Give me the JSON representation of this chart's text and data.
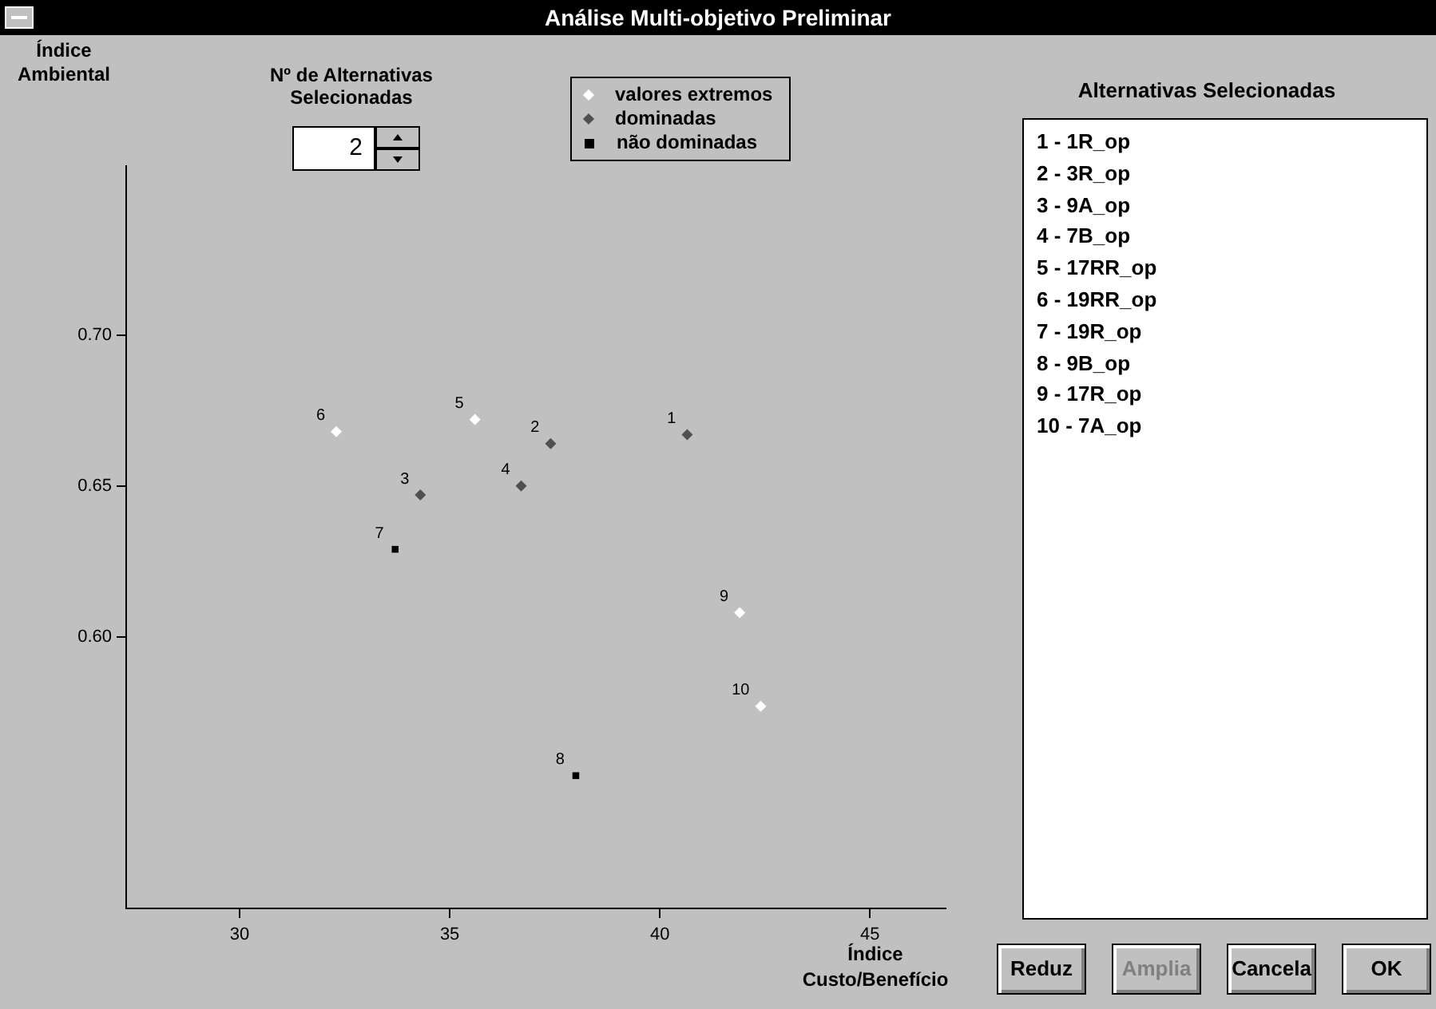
{
  "chart_data": {
    "type": "scatter",
    "title": "Análise Multi-objetivo Preliminar",
    "xlabel": "Índice Custo/Benefício",
    "ylabel": "Índice Ambiental",
    "xlim": [
      27.3,
      46.8
    ],
    "xticks": [
      30,
      35,
      40,
      45
    ],
    "ylim": [
      0.51,
      0.756
    ],
    "yticks": [
      {
        "value": 0.6,
        "label": "0.60"
      },
      {
        "value": 0.65,
        "label": "0.65"
      },
      {
        "value": 0.7,
        "label": "0.70"
      }
    ],
    "grid": false,
    "legend": "top",
    "series": [
      {
        "name": "valores extremos",
        "color": "#ffffff",
        "marker": "diamond",
        "x": [
          35.6,
          32.3,
          41.9,
          42.4
        ],
        "values": [
          0.672,
          0.668,
          0.608,
          0.577
        ]
      },
      {
        "name": "dominadas",
        "color": "#505050",
        "marker": "diamond",
        "x": [
          40.65,
          37.4,
          34.3,
          36.7
        ],
        "values": [
          0.667,
          0.664,
          0.647,
          0.65
        ]
      },
      {
        "name": "não dominadas",
        "color": "#000000",
        "marker": "square",
        "x": [
          33.7,
          38.0
        ],
        "values": [
          0.629,
          0.554
        ]
      }
    ],
    "annotations": [
      {
        "text": "1",
        "x": 40.65,
        "y": 0.667
      },
      {
        "text": "2",
        "x": 37.4,
        "y": 0.664
      },
      {
        "text": "3",
        "x": 34.3,
        "y": 0.647
      },
      {
        "text": "4",
        "x": 36.7,
        "y": 0.65
      },
      {
        "text": "5",
        "x": 35.6,
        "y": 0.672
      },
      {
        "text": "6",
        "x": 32.3,
        "y": 0.668
      },
      {
        "text": "7",
        "x": 33.7,
        "y": 0.629
      },
      {
        "text": "8",
        "x": 38.0,
        "y": 0.554
      },
      {
        "text": "9",
        "x": 41.9,
        "y": 0.608
      },
      {
        "text": "10",
        "x": 42.4,
        "y": 0.577
      },
      "Nº de Alternativas Selecionadas",
      "2",
      "Alternativas Selecionadas",
      "1 - 1R_op",
      "2 - 3R_op",
      "3 - 9A_op",
      "4 - 7B_op",
      "5 - 17RR_op",
      "6 - 19RR_op",
      "7 - 19R_op",
      "8 - 9B_op",
      "9 - 17R_op",
      "10 - 7A_op",
      "Reduz",
      "Amplia",
      "Cancela",
      "OK"
    ]
  }
}
